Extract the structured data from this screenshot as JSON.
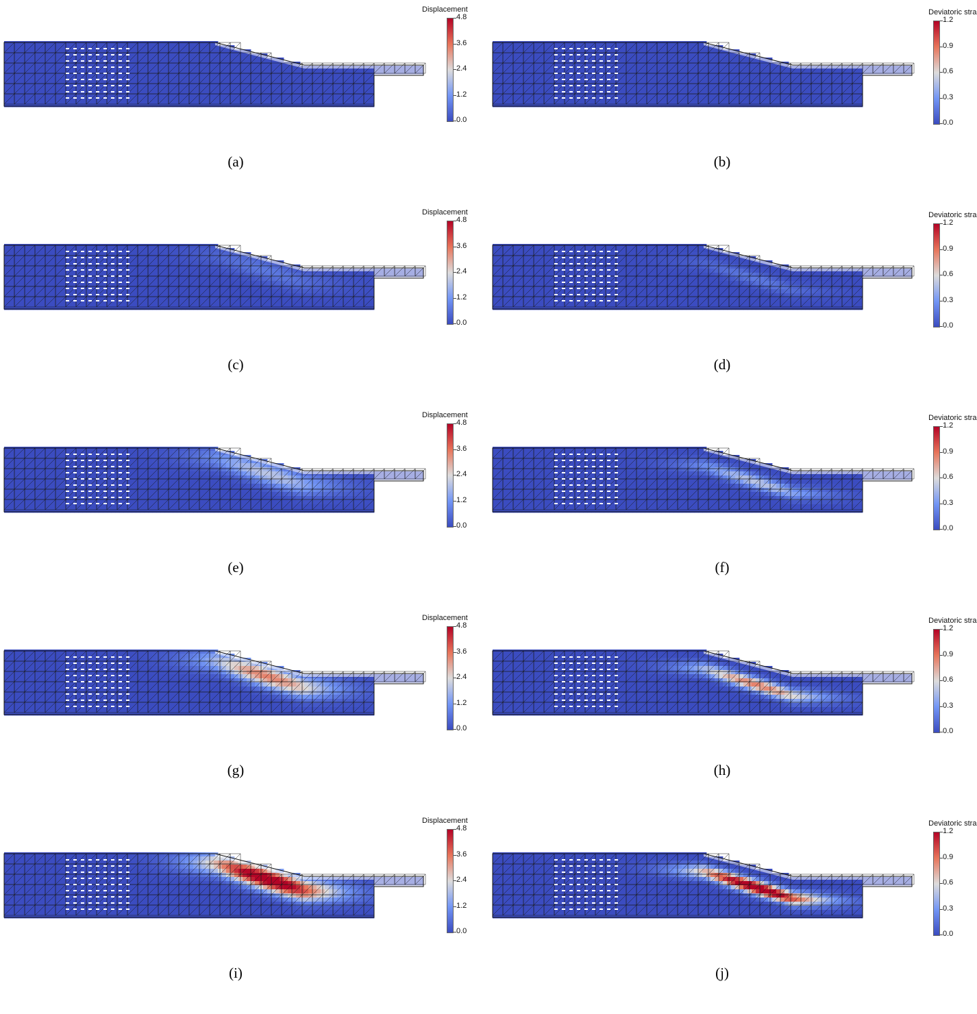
{
  "colormap": [
    "#3b4cc0",
    "#7396f5",
    "#dddcdc",
    "#e7755b",
    "#b40426"
  ],
  "mesh_color": "#1a1a1a",
  "colorbars": {
    "displacement": {
      "title": "Displacement",
      "ticks": [
        "4.8",
        "3.6",
        "2.4",
        "1.2",
        "0.0"
      ]
    },
    "deviatoric": {
      "title": "Deviatoric strain",
      "ticks": [
        "1.2",
        "0.9",
        "0.6",
        "0.3",
        "0.0"
      ]
    }
  },
  "panels": [
    {
      "label": "(a)",
      "field": "displacement",
      "stage": 0
    },
    {
      "label": "(b)",
      "field": "deviatoric",
      "stage": 0
    },
    {
      "label": "(c)",
      "field": "displacement",
      "stage": 1
    },
    {
      "label": "(d)",
      "field": "deviatoric",
      "stage": 1
    },
    {
      "label": "(e)",
      "field": "displacement",
      "stage": 2
    },
    {
      "label": "(f)",
      "field": "deviatoric",
      "stage": 2
    },
    {
      "label": "(g)",
      "field": "displacement",
      "stage": 3
    },
    {
      "label": "(h)",
      "field": "deviatoric",
      "stage": 3
    },
    {
      "label": "(i)",
      "field": "displacement",
      "stage": 4
    },
    {
      "label": "(j)",
      "field": "deviatoric",
      "stage": 4
    }
  ]
}
